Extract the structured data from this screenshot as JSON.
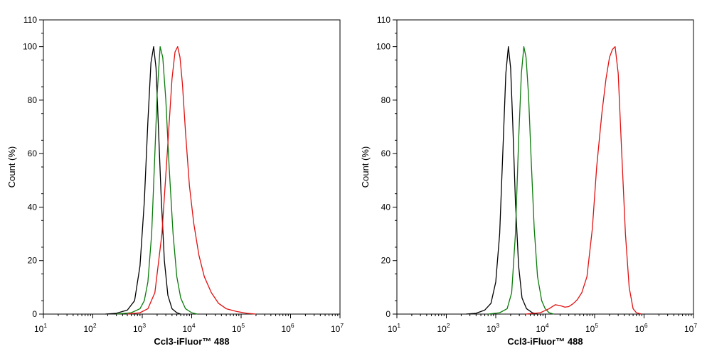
{
  "chart_data": [
    {
      "type": "line",
      "xscale": "log",
      "xlim": [
        10,
        10000000
      ],
      "ylim": [
        0,
        110
      ],
      "xlabel": "Ccl3-iFluor™ 488",
      "ylabel": "Count  (%)",
      "xticks": [
        {
          "base": "10",
          "exp": "1"
        },
        {
          "base": "10",
          "exp": "2"
        },
        {
          "base": "10",
          "exp": "3"
        },
        {
          "base": "10",
          "exp": "4"
        },
        {
          "base": "10",
          "exp": "5"
        },
        {
          "base": "10",
          "exp": "6"
        },
        {
          "base": "10",
          "exp": "7"
        }
      ],
      "yticks": [
        "0",
        "20",
        "40",
        "60",
        "80",
        "100",
        "110"
      ],
      "series": [
        {
          "color": "#000000",
          "x": [
            180,
            300,
            500,
            700,
            900,
            1100,
            1300,
            1500,
            1700,
            1900,
            2100,
            2400,
            2800,
            3300,
            4000,
            5000,
            6000
          ],
          "y": [
            0,
            0.3,
            1.5,
            5,
            18,
            42,
            72,
            94,
            100,
            92,
            72,
            45,
            20,
            7,
            2,
            0.5,
            0
          ]
        },
        {
          "color": "#0a7a0a",
          "x": [
            300,
            600,
            900,
            1100,
            1300,
            1550,
            1800,
            2000,
            2300,
            2600,
            3000,
            3500,
            4200,
            5000,
            6000,
            7500,
            10000,
            13000
          ],
          "y": [
            0,
            0.5,
            2,
            5,
            12,
            30,
            60,
            82,
            100,
            96,
            80,
            55,
            30,
            14,
            6,
            2,
            0.5,
            0
          ]
        },
        {
          "color": "#e01010",
          "x": [
            500,
            900,
            1300,
            1800,
            2500,
            3200,
            4000,
            4600,
            5200,
            5800,
            6500,
            7500,
            9000,
            11000,
            14000,
            18000,
            25000,
            35000,
            50000,
            80000,
            130000,
            200000
          ],
          "y": [
            0,
            0.5,
            2,
            8,
            30,
            60,
            88,
            98,
            100,
            96,
            86,
            68,
            48,
            34,
            22,
            14,
            8,
            4,
            2,
            1,
            0.3,
            0
          ]
        }
      ]
    },
    {
      "type": "line",
      "xscale": "log",
      "xlim": [
        10,
        10000000
      ],
      "ylim": [
        0,
        110
      ],
      "xlabel": "Ccl3-iFluor™ 488",
      "ylabel": "Count  (%)",
      "xticks": [
        {
          "base": "10",
          "exp": "1"
        },
        {
          "base": "10",
          "exp": "2"
        },
        {
          "base": "10",
          "exp": "3"
        },
        {
          "base": "10",
          "exp": "4"
        },
        {
          "base": "10",
          "exp": "5"
        },
        {
          "base": "10",
          "exp": "6"
        },
        {
          "base": "10",
          "exp": "7"
        }
      ],
      "yticks": [
        "0",
        "20",
        "40",
        "60",
        "80",
        "100",
        "110"
      ],
      "series": [
        {
          "color": "#000000",
          "x": [
            250,
            400,
            600,
            800,
            1000,
            1200,
            1400,
            1600,
            1800,
            2000,
            2200,
            2500,
            2900,
            3400,
            4200,
            5500,
            7000
          ],
          "y": [
            0,
            0.3,
            1.5,
            4,
            12,
            30,
            62,
            90,
            100,
            92,
            72,
            42,
            18,
            6,
            2,
            0.5,
            0
          ]
        },
        {
          "color": "#0a7a0a",
          "x": [
            700,
            1200,
            1700,
            2100,
            2500,
            2900,
            3300,
            3700,
            4100,
            4600,
            5200,
            6000,
            7000,
            8500,
            10000,
            12000,
            15000
          ],
          "y": [
            0,
            0.5,
            2,
            8,
            30,
            65,
            90,
            100,
            96,
            82,
            58,
            32,
            14,
            5,
            2,
            0.5,
            0
          ]
        },
        {
          "color": "#e01010",
          "x": [
            4000,
            8000,
            12000,
            16000,
            20000,
            25000,
            30000,
            35000,
            40000,
            45000,
            55000,
            70000,
            90000,
            110000,
            140000,
            170000,
            200000,
            230000,
            260000,
            300000,
            350000,
            420000,
            500000,
            600000,
            700000,
            900000
          ],
          "y": [
            0,
            0.5,
            2,
            3.5,
            3.2,
            2.6,
            2.8,
            3.6,
            4.5,
            5.5,
            8,
            14,
            32,
            55,
            75,
            88,
            96,
            99,
            100,
            90,
            62,
            30,
            10,
            2,
            0.5,
            0
          ]
        }
      ]
    }
  ]
}
